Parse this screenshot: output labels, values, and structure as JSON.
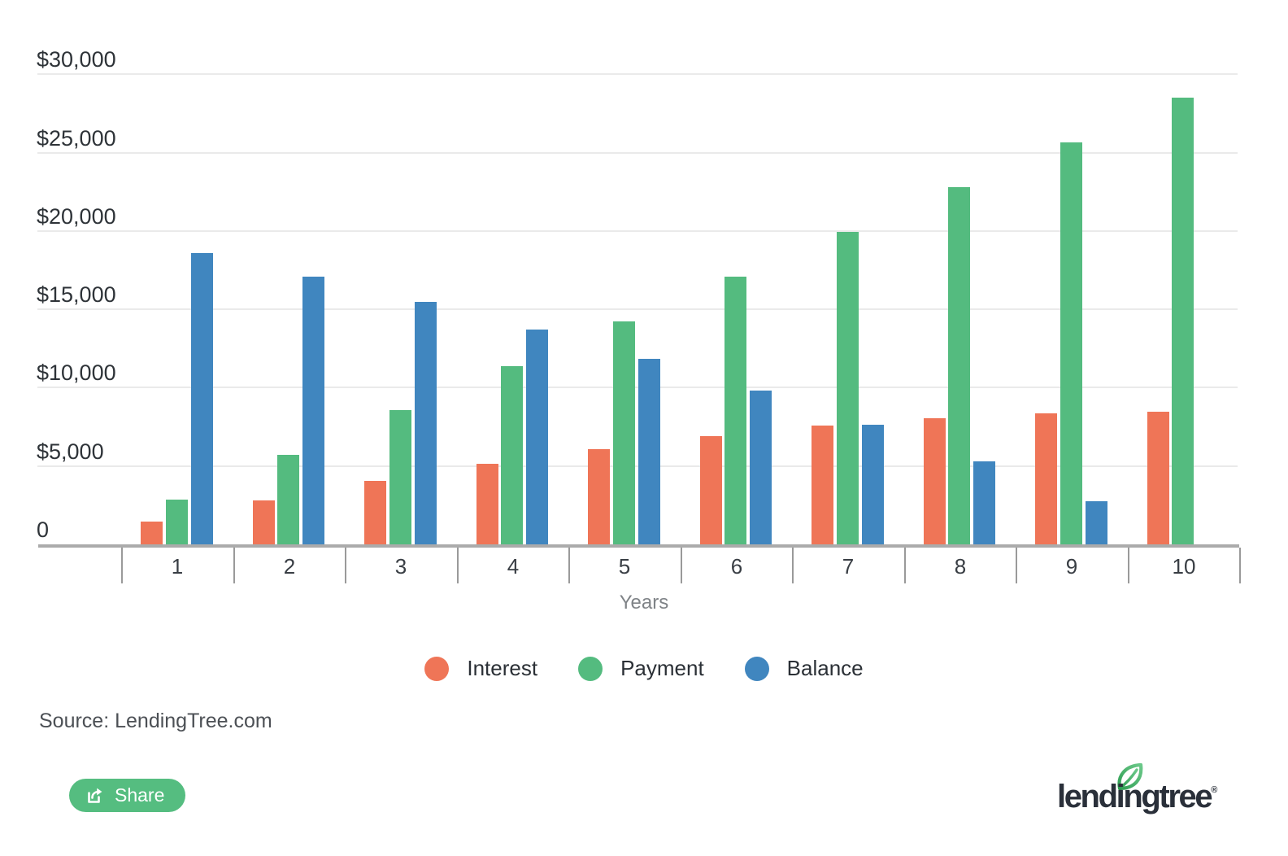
{
  "chart_data": {
    "type": "bar",
    "title": "",
    "xlabel": "Years",
    "ylabel": "",
    "categories": [
      "1",
      "2",
      "3",
      "4",
      "5",
      "6",
      "7",
      "8",
      "9",
      "10"
    ],
    "series": [
      {
        "name": "Interest",
        "color": "#EF7557",
        "values": [
          1453,
          2797,
          4024,
          5126,
          6092,
          6911,
          7575,
          8067,
          8377,
          8487
        ]
      },
      {
        "name": "Payment",
        "color": "#54BB7F",
        "values": [
          2849,
          5697,
          8546,
          11395,
          14243,
          17092,
          19941,
          22789,
          25638,
          28487
        ]
      },
      {
        "name": "Balance",
        "color": "#4086BF",
        "values": [
          18604,
          17100,
          15478,
          13731,
          11849,
          9819,
          7634,
          5278,
          2739,
          0
        ]
      }
    ],
    "ylim": [
      0,
      30000
    ],
    "y_tick_values": [
      0,
      5000,
      10000,
      15000,
      20000,
      25000,
      30000
    ],
    "y_tick_labels": [
      "0",
      "$5,000",
      "$10,000",
      "$15,000",
      "$20,000",
      "$25,000",
      "$30,000"
    ],
    "grid": "on",
    "legend_position": "bottom"
  },
  "footer": {
    "source": "Source: LendingTree.com",
    "share_label": "Share"
  },
  "logo": {
    "text": "lendingtree",
    "registered": "®"
  }
}
